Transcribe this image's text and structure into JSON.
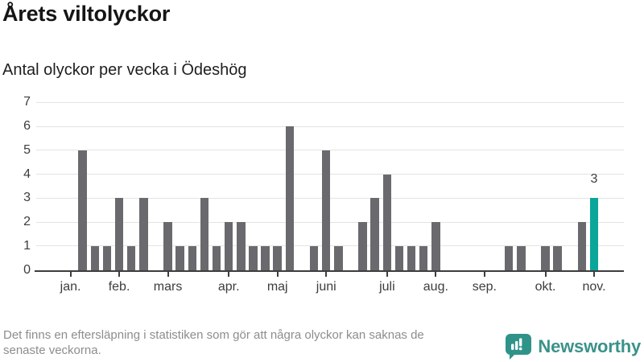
{
  "header": {
    "title": "Årets viltolyckor",
    "subtitle": "Antal olyckor per vecka i Ödeshög"
  },
  "chart_data": {
    "type": "bar",
    "title": "Årets viltolyckor",
    "subtitle": "Antal olyckor per vecka i Ödeshög",
    "x_unit": "vecka",
    "weeks": [
      1,
      2,
      3,
      4,
      5,
      6,
      7,
      8,
      9,
      10,
      11,
      12,
      13,
      14,
      15,
      16,
      17,
      18,
      19,
      20,
      21,
      22,
      23,
      24,
      25,
      26,
      27,
      28,
      29,
      30,
      31,
      32,
      33,
      34,
      35,
      36,
      37,
      38,
      39,
      40,
      41,
      42,
      43,
      44,
      45,
      46
    ],
    "values": [
      0,
      0,
      0,
      5,
      1,
      1,
      3,
      1,
      3,
      0,
      2,
      1,
      1,
      3,
      1,
      2,
      2,
      1,
      1,
      1,
      6,
      0,
      1,
      5,
      1,
      0,
      2,
      3,
      4,
      1,
      1,
      1,
      2,
      0,
      0,
      0,
      0,
      0,
      1,
      1,
      0,
      1,
      1,
      0,
      2,
      3
    ],
    "highlight_index": 45,
    "highlight_label": "3",
    "ylim": [
      0,
      7
    ],
    "yticks": [
      0,
      1,
      2,
      3,
      4,
      5,
      6,
      7
    ],
    "grid": true,
    "legend": "none",
    "month_ticks": [
      {
        "label": "jan.",
        "week": 3
      },
      {
        "label": "feb.",
        "week": 7
      },
      {
        "label": "mars",
        "week": 11
      },
      {
        "label": "apr.",
        "week": 16
      },
      {
        "label": "maj",
        "week": 20
      },
      {
        "label": "juni",
        "week": 24
      },
      {
        "label": "juli",
        "week": 29
      },
      {
        "label": "aug.",
        "week": 33
      },
      {
        "label": "sep.",
        "week": 37
      },
      {
        "label": "okt.",
        "week": 42
      },
      {
        "label": "nov.",
        "week": 46
      }
    ],
    "colors": {
      "bar": "#6a6a6e",
      "highlight": "#0aa69a",
      "gridline": "#e3e3e3",
      "axis": "#3d3d3d"
    }
  },
  "footer": {
    "note_lines": [
      "Det finns en eftersläpning i statistiken som gör att några olyckor kan saknas de",
      "senaste veckorna."
    ],
    "brand": "Newsworthy",
    "brand_color": "#3b928a"
  }
}
